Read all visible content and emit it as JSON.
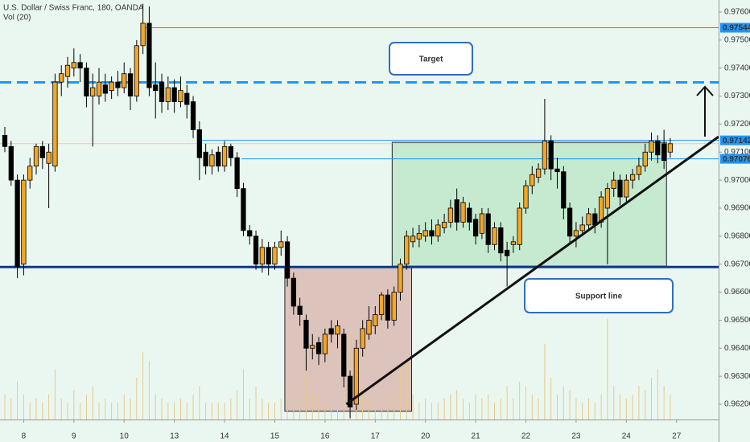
{
  "chart_data": {
    "type": "candlestick",
    "title": "U.S. Dollar / Swiss Franc, 180, OANDA",
    "subtitle": "Vol (20)",
    "up_color": "#f5a623",
    "down_color": "#000000",
    "volume_color": "#e8c98a",
    "xlim": [
      -0.77,
      113.7
    ],
    "ylim": [
      0.961455,
      0.97643
    ],
    "y2lim": [
      0,
      500
    ],
    "xticks": [
      {
        "value": 3,
        "label": "8"
      },
      {
        "value": 11,
        "label": "9"
      },
      {
        "value": 19,
        "label": "10"
      },
      {
        "value": 27,
        "label": "13"
      },
      {
        "value": 35,
        "label": "14"
      },
      {
        "value": 43,
        "label": "15"
      },
      {
        "value": 51,
        "label": "16"
      },
      {
        "value": 59,
        "label": "17"
      },
      {
        "value": 67,
        "label": "20"
      },
      {
        "value": 75,
        "label": "21"
      },
      {
        "value": 83,
        "label": "22"
      },
      {
        "value": 91,
        "label": "23"
      },
      {
        "value": 99,
        "label": "24"
      },
      {
        "value": 107,
        "label": "27"
      }
    ],
    "yticks": [
      {
        "value": 0.962,
        "label": "0.96200"
      },
      {
        "value": 0.963,
        "label": "0.96300"
      },
      {
        "value": 0.964,
        "label": "0.96400"
      },
      {
        "value": 0.965,
        "label": "0.96500"
      },
      {
        "value": 0.966,
        "label": "0.96600"
      },
      {
        "value": 0.967,
        "label": "0.96700"
      },
      {
        "value": 0.968,
        "label": "0.96800"
      },
      {
        "value": 0.969,
        "label": "0.96900"
      },
      {
        "value": 0.97,
        "label": "0.97000"
      },
      {
        "value": 0.971,
        "label": "0.97100"
      },
      {
        "value": 0.972,
        "label": "0.97200"
      },
      {
        "value": 0.973,
        "label": "0.97300"
      },
      {
        "value": 0.974,
        "label": "0.97400"
      },
      {
        "value": 0.975,
        "label": "0.97500"
      },
      {
        "value": 0.976,
        "label": "0.97600"
      }
    ],
    "open": [
      0.9716,
      0.9712,
      0.97,
      0.967,
      0.97,
      0.9705,
      0.9712,
      0.9706,
      0.9705,
      0.9735,
      0.9737,
      0.974,
      0.9742,
      0.974,
      0.973,
      0.973,
      0.9734,
      0.9732,
      0.9735,
      0.9733,
      0.9738,
      0.973,
      0.9748,
      0.9756,
      0.9734,
      0.9735,
      0.9728,
      0.9733,
      0.9728,
      0.9731,
      0.9728,
      0.9718,
      0.971,
      0.9705,
      0.971,
      0.9705,
      0.9712,
      0.9708,
      0.9697,
      0.9682,
      0.968,
      0.967,
      0.9676,
      0.967,
      0.9676,
      0.9678,
      0.9665,
      0.9655,
      0.965,
      0.964,
      0.9642,
      0.9638,
      0.9647,
      0.9645,
      0.9645,
      0.963,
      0.962,
      0.964,
      0.9645,
      0.9648,
      0.9652,
      0.9659,
      0.965,
      0.966,
      0.967,
      0.9678,
      0.9679,
      0.968,
      0.9682,
      0.968,
      0.9683,
      0.9685,
      0.9693,
      0.9685,
      0.969,
      0.9686,
      0.9681,
      0.9688,
      0.9677,
      0.9683,
      0.9675,
      0.9677,
      0.9677,
      0.969,
      0.9698,
      0.9701,
      0.9704,
      0.9714,
      0.9704,
      0.9703,
      0.969,
      0.968,
      0.9682,
      0.9684,
      0.9688,
      0.9685,
      0.969,
      0.9697,
      0.97,
      0.9694,
      0.97,
      0.9702,
      0.9705,
      0.971,
      0.9714,
      0.9713,
      0.971
    ],
    "high": [
      0.9719,
      0.9714,
      0.9702,
      0.9702,
      0.9708,
      0.9713,
      0.9714,
      0.9713,
      0.9738,
      0.9741,
      0.9744,
      0.9747,
      0.9745,
      0.9742,
      0.9738,
      0.974,
      0.9738,
      0.9737,
      0.9739,
      0.9742,
      0.974,
      0.975,
      0.9763,
      0.9762,
      0.9742,
      0.9738,
      0.9737,
      0.9736,
      0.9737,
      0.9734,
      0.973,
      0.9721,
      0.9713,
      0.9711,
      0.9712,
      0.9714,
      0.9713,
      0.971,
      0.9699,
      0.9684,
      0.9682,
      0.9679,
      0.9678,
      0.9678,
      0.9682,
      0.968,
      0.9667,
      0.9658,
      0.9652,
      0.9645,
      0.9644,
      0.9647,
      0.965,
      0.965,
      0.9647,
      0.9632,
      0.9643,
      0.965,
      0.9655,
      0.9655,
      0.966,
      0.9661,
      0.9662,
      0.9672,
      0.9682,
      0.9683,
      0.9684,
      0.9685,
      0.9686,
      0.9686,
      0.9688,
      0.9693,
      0.9697,
      0.9694,
      0.9692,
      0.9688,
      0.969,
      0.969,
      0.9685,
      0.9685,
      0.9678,
      0.968,
      0.9692,
      0.97,
      0.9705,
      0.9706,
      0.9729,
      0.9716,
      0.9708,
      0.9705,
      0.9692,
      0.9685,
      0.9687,
      0.969,
      0.969,
      0.9696,
      0.9699,
      0.9703,
      0.9702,
      0.9702,
      0.9704,
      0.9708,
      0.9713,
      0.9717,
      0.9716,
      0.9718,
      0.9715
    ],
    "low": [
      0.971,
      0.9698,
      0.9665,
      0.9666,
      0.9697,
      0.9702,
      0.9704,
      0.969,
      0.9703,
      0.973,
      0.9733,
      0.9737,
      0.9735,
      0.9726,
      0.9712,
      0.9727,
      0.9728,
      0.9729,
      0.973,
      0.9731,
      0.9725,
      0.9728,
      0.9745,
      0.973,
      0.9722,
      0.9724,
      0.9725,
      0.9724,
      0.9726,
      0.9722,
      0.9715,
      0.97,
      0.9702,
      0.9702,
      0.9703,
      0.9703,
      0.9705,
      0.9694,
      0.968,
      0.9677,
      0.9668,
      0.9667,
      0.9666,
      0.9668,
      0.9673,
      0.9662,
      0.9652,
      0.9648,
      0.9632,
      0.9636,
      0.9634,
      0.9635,
      0.9642,
      0.964,
      0.9626,
      0.9615,
      0.9618,
      0.9637,
      0.9643,
      0.9645,
      0.965,
      0.9647,
      0.9648,
      0.9657,
      0.9668,
      0.9676,
      0.9676,
      0.9678,
      0.9677,
      0.9678,
      0.9681,
      0.9683,
      0.9682,
      0.9683,
      0.9682,
      0.9677,
      0.9679,
      0.9674,
      0.9675,
      0.9671,
      0.9662,
      0.9674,
      0.9675,
      0.9688,
      0.9695,
      0.9699,
      0.9702,
      0.97,
      0.9697,
      0.9686,
      0.9677,
      0.9676,
      0.968,
      0.9682,
      0.9681,
      0.9683,
      0.967,
      0.9694,
      0.9691,
      0.9692,
      0.9697,
      0.97,
      0.9703,
      0.9707,
      0.9706,
      0.9704,
      0.9708
    ],
    "close": [
      0.9712,
      0.97,
      0.9669,
      0.97,
      0.9705,
      0.9712,
      0.9708,
      0.971,
      0.9735,
      0.9738,
      0.9741,
      0.9742,
      0.974,
      0.973,
      0.9733,
      0.9735,
      0.9731,
      0.9735,
      0.9733,
      0.9738,
      0.973,
      0.9748,
      0.9756,
      0.9733,
      0.9732,
      0.9728,
      0.9733,
      0.9728,
      0.9732,
      0.9727,
      0.9718,
      0.9708,
      0.9705,
      0.9709,
      0.9705,
      0.9712,
      0.9708,
      0.9697,
      0.9682,
      0.968,
      0.967,
      0.9676,
      0.967,
      0.9676,
      0.9678,
      0.9665,
      0.9655,
      0.9652,
      0.964,
      0.9641,
      0.9638,
      0.9645,
      0.9645,
      0.9648,
      0.963,
      0.9619,
      0.964,
      0.9647,
      0.965,
      0.9652,
      0.9659,
      0.965,
      0.966,
      0.967,
      0.968,
      0.968,
      0.9681,
      0.9682,
      0.968,
      0.9684,
      0.9685,
      0.969,
      0.9685,
      0.9692,
      0.9685,
      0.968,
      0.9688,
      0.9677,
      0.9683,
      0.9674,
      0.9673,
      0.9678,
      0.969,
      0.9698,
      0.9702,
      0.9704,
      0.9714,
      0.9704,
      0.9703,
      0.969,
      0.968,
      0.9682,
      0.9684,
      0.9688,
      0.9684,
      0.9694,
      0.9697,
      0.97,
      0.9694,
      0.97,
      0.9702,
      0.9705,
      0.971,
      0.9714,
      0.9709,
      0.9707,
      0.9713
    ],
    "volume": [
      30,
      25,
      45,
      30,
      20,
      25,
      20,
      30,
      60,
      25,
      20,
      35,
      20,
      30,
      40,
      20,
      25,
      20,
      20,
      30,
      25,
      50,
      80,
      70,
      30,
      25,
      20,
      20,
      25,
      20,
      30,
      40,
      20,
      20,
      20,
      20,
      25,
      35,
      60,
      25,
      40,
      25,
      20,
      20,
      25,
      30,
      40,
      30,
      90,
      30,
      30,
      20,
      25,
      30,
      60,
      100,
      95,
      40,
      30,
      25,
      40,
      35,
      30,
      60,
      70,
      30,
      20,
      25,
      20,
      20,
      25,
      30,
      35,
      25,
      20,
      30,
      25,
      30,
      20,
      25,
      40,
      25,
      45,
      40,
      30,
      25,
      90,
      50,
      30,
      40,
      35,
      25,
      20,
      25,
      20,
      30,
      120,
      40,
      30,
      25,
      30,
      40,
      35,
      50,
      60,
      40,
      30
    ],
    "boxes": [
      {
        "x": [
          44.6,
          64.8
        ],
        "y": [
          0.96175,
          0.9669
        ],
        "color": "#dcc3bb"
      },
      {
        "x": [
          61.7,
          105.4
        ],
        "y": [
          0.96693,
          0.97135
        ],
        "color": "#c6ead0"
      }
    ],
    "levels": [
      {
        "value": 0.97544,
        "kind": "price",
        "start": 22.3,
        "color": "#2196f3"
      },
      {
        "value": 0.97142,
        "kind": "price",
        "start": 31.3,
        "color": "#2196f3"
      },
      {
        "value": 0.97076,
        "kind": "price",
        "start": 37.7,
        "color": "#2196f3"
      },
      {
        "value": 0.9669,
        "kind": "support",
        "color": "#0d3c8c"
      },
      {
        "value": 0.97349,
        "kind": "target",
        "color": "#2196f3"
      }
    ],
    "trendline": {
      "x": [
        54.4,
        113.7
      ],
      "y": [
        0.962,
        0.97155
      ],
      "color": "#111111"
    },
    "annotations": [
      {
        "text": "Target"
      },
      {
        "text": "Support line"
      }
    ]
  }
}
